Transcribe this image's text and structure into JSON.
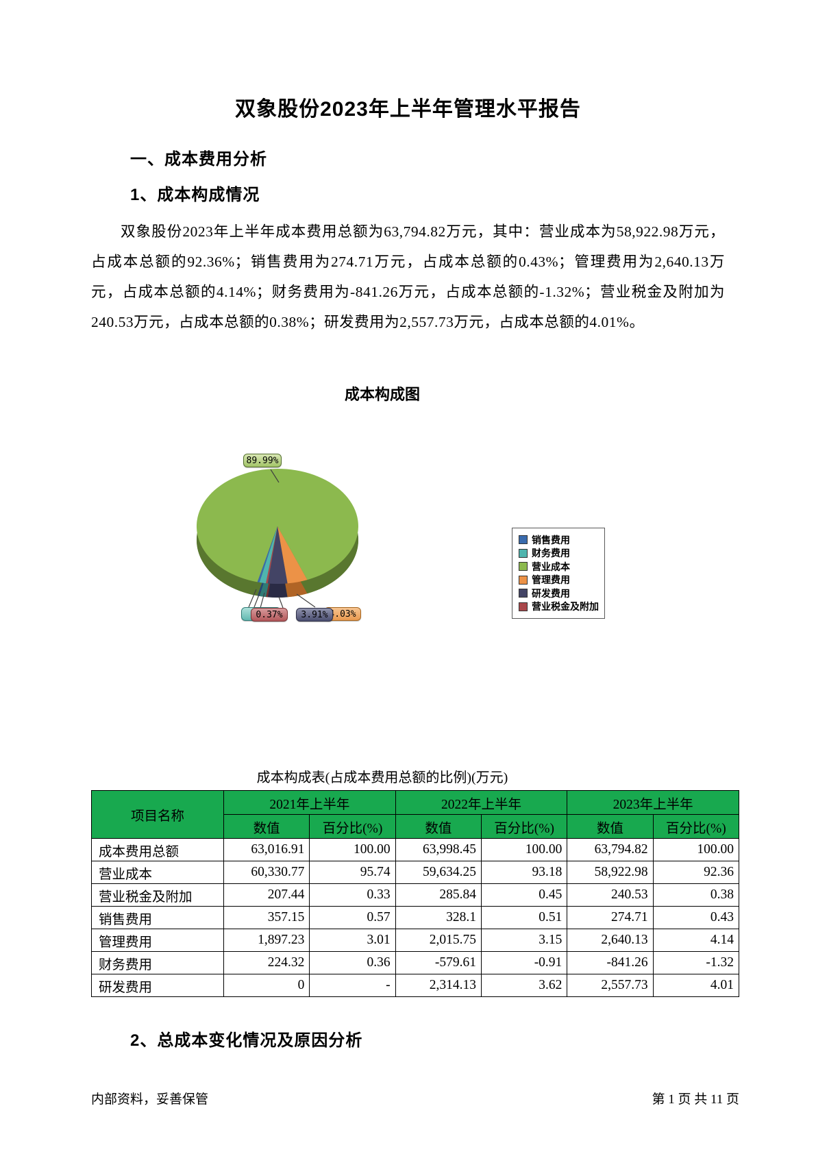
{
  "page": {
    "title": "双象股份2023年上半年管理水平报告",
    "section1": "一、成本费用分析",
    "section1_1": "1、成本构成情况",
    "paragraph": "双象股份2023年上半年成本费用总额为63,794.82万元，其中：营业成本为58,922.98万元，占成本总额的92.36%；销售费用为274.71万元，占成本总额的0.43%；管理费用为2,640.13万元，占成本总额的4.14%；财务费用为-841.26万元，占成本总额的-1.32%；营业税金及附加为240.53万元，占成本总额的0.38%；研发费用为2,557.73万元，占成本总额的4.01%。",
    "section1_2": "2、总成本变化情况及原因分析",
    "footer_left": "内部资料，妥善保管",
    "footer_right": "第 1 页  共 11 页"
  },
  "chart_data": {
    "type": "pie",
    "title": "成本构成图",
    "is_3d": true,
    "legend_position": "right",
    "start_angle_deg": 194.4,
    "slices": [
      {
        "name": "营业成本",
        "pct": 89.99,
        "label": "89.99%",
        "color": "#8CB94E",
        "side": "#59772F"
      },
      {
        "name": "管理费用",
        "pct": 4.03,
        "label": "4.03%",
        "color": "#EC9247",
        "side": "#B06426"
      },
      {
        "name": "研发费用",
        "pct": 3.91,
        "label": "3.91%",
        "color": "#434465",
        "side": "#2A2B45"
      },
      {
        "name": "营业税金及附加",
        "pct": 0.37,
        "label": "0.37%",
        "color": "#AA484B",
        "side": "#74302F"
      },
      {
        "name": "财务费用",
        "pct": 1.28,
        "label": "",
        "color": "#4FB5AE",
        "side": "#2F7B76"
      },
      {
        "name": "销售费用",
        "pct": 0.42,
        "label": "",
        "color": "#3A6BAD",
        "side": "#24477A"
      }
    ],
    "legend": [
      {
        "label": "销售费用",
        "color": "#3A6BAD"
      },
      {
        "label": "财务费用",
        "color": "#4FB5AE"
      },
      {
        "label": "营业成本",
        "color": "#8CB94E"
      },
      {
        "label": "管理费用",
        "color": "#EC9247"
      },
      {
        "label": "研发费用",
        "color": "#434465"
      },
      {
        "label": "营业税金及附加",
        "color": "#AA484B"
      }
    ]
  },
  "table": {
    "title": "成本构成表(占成本费用总额的比例)(万元)",
    "header_bg": "#18A94F",
    "corner_header": "项目名称",
    "year_headers": [
      "2021年上半年",
      "2022年上半年",
      "2023年上半年"
    ],
    "sub_headers": [
      "数值",
      "百分比(%)"
    ],
    "rows": [
      {
        "name": "成本费用总额",
        "cells": [
          "63,016.91",
          "100.00",
          "63,998.45",
          "100.00",
          "63,794.82",
          "100.00"
        ]
      },
      {
        "name": "营业成本",
        "cells": [
          "60,330.77",
          "95.74",
          "59,634.25",
          "93.18",
          "58,922.98",
          "92.36"
        ]
      },
      {
        "name": "营业税金及附加",
        "cells": [
          "207.44",
          "0.33",
          "285.84",
          "0.45",
          "240.53",
          "0.38"
        ]
      },
      {
        "name": "销售费用",
        "cells": [
          "357.15",
          "0.57",
          "328.1",
          "0.51",
          "274.71",
          "0.43"
        ]
      },
      {
        "name": "管理费用",
        "cells": [
          "1,897.23",
          "3.01",
          "2,015.75",
          "3.15",
          "2,640.13",
          "4.14"
        ]
      },
      {
        "name": "财务费用",
        "cells": [
          "224.32",
          "0.36",
          "-579.61",
          "-0.91",
          "-841.26",
          "-1.32"
        ]
      },
      {
        "name": "研发费用",
        "cells": [
          "0",
          "-",
          "2,314.13",
          "3.62",
          "2,557.73",
          "4.01"
        ]
      }
    ]
  }
}
